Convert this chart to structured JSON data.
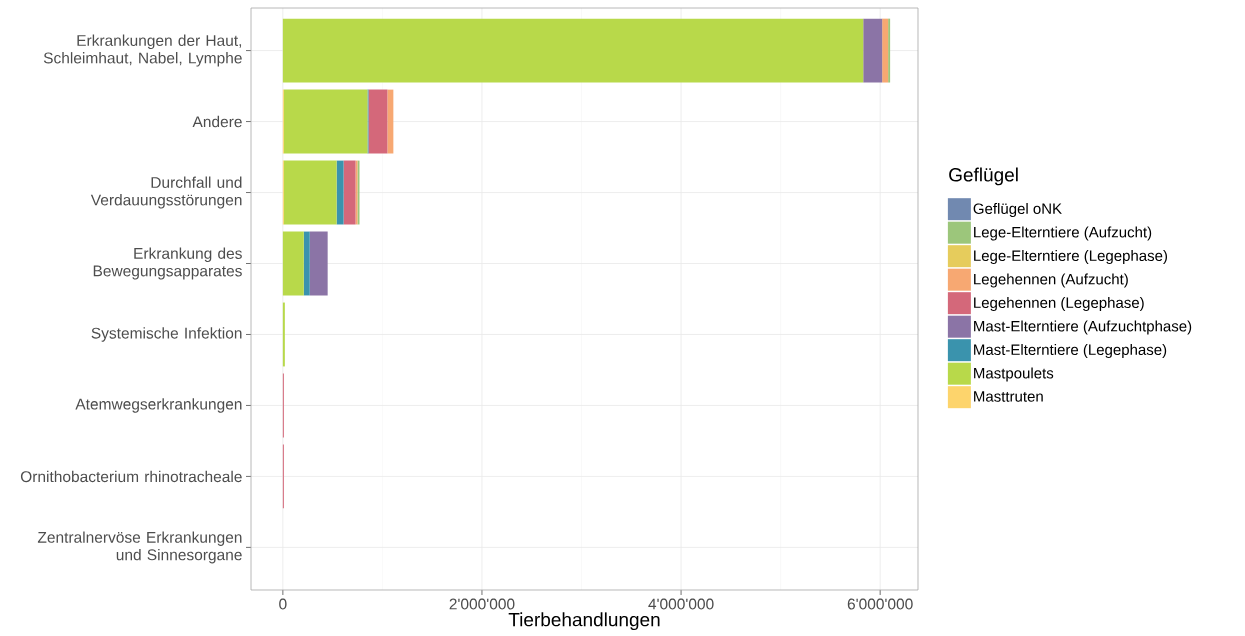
{
  "chart_data": {
    "type": "bar",
    "orientation": "horizontal",
    "stacked": true,
    "xlabel": "Tierbehandlungen",
    "legend_title": "Geflügel",
    "legend": "right",
    "grid": true,
    "categories": [
      "Erkrankungen der Haut, Schleimhaut, Nabel, Lymphe",
      "Andere",
      "Durchfall und Verdauungsstörungen",
      "Erkrankung des Bewegungsapparates",
      "Systemische Infektion",
      "Atemwegserkrankungen",
      "Ornithobacterium rhinotracheale",
      "Zentralnervöse Erkrankungen und Sinnesorgane"
    ],
    "xlim": [
      -320000,
      6380000
    ],
    "xticks": [
      {
        "value": 0,
        "label": "0"
      },
      {
        "value": 2000000,
        "label": "2'000'000"
      },
      {
        "value": 4000000,
        "label": "4'000'000"
      },
      {
        "value": 6000000,
        "label": "6'000'000"
      }
    ],
    "series": [
      {
        "name": "Masttruten",
        "color": "#fdd46c",
        "values": [
          0,
          10000,
          10000,
          0,
          0,
          0,
          0,
          0
        ]
      },
      {
        "name": "Mastpoulets",
        "color": "#b8d94a",
        "values": [
          5830000,
          840000,
          530000,
          210000,
          20000,
          0,
          0,
          0
        ]
      },
      {
        "name": "Mast-Elterntiere (Legephase)",
        "color": "#3a93ad",
        "values": [
          0,
          10000,
          70000,
          60000,
          0,
          0,
          0,
          0
        ]
      },
      {
        "name": "Mast-Elterntiere (Aufzuchtphase)",
        "color": "#8b74a6",
        "values": [
          190000,
          0,
          0,
          180000,
          0,
          0,
          0,
          0
        ]
      },
      {
        "name": "Legehennen (Legephase)",
        "color": "#d4687a",
        "values": [
          0,
          190000,
          120000,
          0,
          0,
          10000,
          10000,
          0
        ]
      },
      {
        "name": "Legehennen (Aufzucht)",
        "color": "#f7a872",
        "values": [
          60000,
          60000,
          20000,
          0,
          0,
          0,
          0,
          0
        ]
      },
      {
        "name": "Lege-Elterntiere (Legephase)",
        "color": "#e6cc5c",
        "values": [
          0,
          0,
          0,
          0,
          0,
          0,
          0,
          0
        ]
      },
      {
        "name": "Lege-Elterntiere (Aufzucht)",
        "color": "#9cc67b",
        "values": [
          20000,
          0,
          20000,
          0,
          0,
          0,
          0,
          0
        ]
      },
      {
        "name": "Geflügel oNK",
        "color": "#7189b0",
        "values": [
          0,
          0,
          0,
          0,
          0,
          0,
          0,
          0
        ]
      }
    ]
  }
}
